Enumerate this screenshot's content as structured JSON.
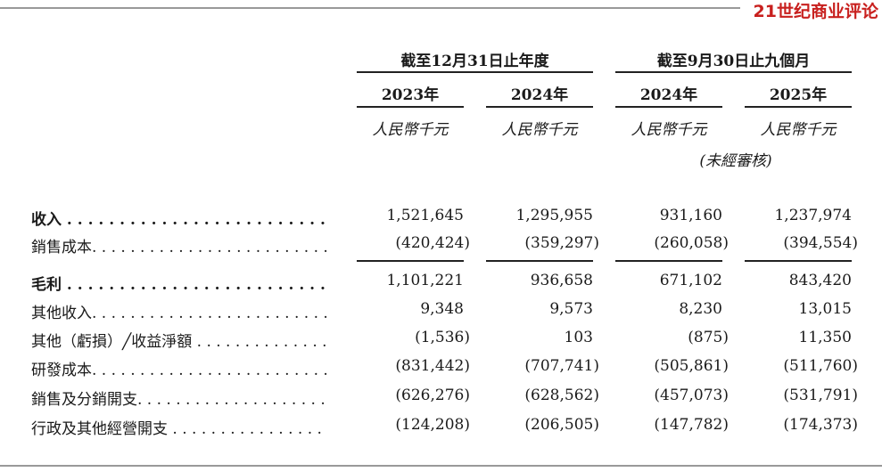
{
  "brand": "21世纪商业评论",
  "header": {
    "groups": [
      "截至12月31日止年度",
      "截至9月30日止九個月"
    ],
    "years": [
      "2023年",
      "2024年",
      "2024年",
      "2025年"
    ],
    "units": [
      "人民幣千元",
      "人民幣千元",
      "人民幣千元",
      "人民幣千元"
    ],
    "note": "(未經審核)"
  },
  "table": {
    "rows": [
      {
        "label": "收入 . . . . . . . . . . . . . . . . . . . . . . . . . . . . . . . . . . .",
        "values": [
          "1,521,645",
          "1,295,955",
          "931,160",
          "1,237,974"
        ]
      },
      {
        "label": "銷售成本. . . . . . . . . . . . . . . . . . . . . . . . . . . . . . . .",
        "values": [
          "(420,424)",
          "(359,297)",
          "(260,058)",
          "(394,554)"
        ]
      },
      {
        "label": "毛利 . . . . . . . . . . . . . . . . . . . . . . . . . . . . . . . . . . .",
        "values": [
          "1,101,221",
          "936,658",
          "671,102",
          "843,420"
        ]
      },
      {
        "label": "其他收入. . . . . . . . . . . . . . . . . . . . . . . . . . . . . . . .",
        "values": [
          "9,348",
          "9,573",
          "8,230",
          "13,015"
        ]
      },
      {
        "label": "其他（虧損）╱收益淨額 . . . . . . . . . . . . . . . . . . . .",
        "values": [
          "(1,536)",
          "103",
          "(875)",
          "11,350"
        ]
      },
      {
        "label": "研發成本. . . . . . . . . . . . . . . . . . . . . . . . . . . . . . . .",
        "values": [
          "(831,442)",
          "(707,741)",
          "(505,861)",
          "(511,760)"
        ]
      },
      {
        "label": "銷售及分銷開支. . . . . . . . . . . . . . . . . . . . . . . . . . .",
        "values": [
          "(626,276)",
          "(628,562)",
          "(457,073)",
          "(531,791)"
        ]
      },
      {
        "label": "行政及其他經營開支 . . . . . . . . . . . . . . . . . . . . . . .",
        "values": [
          "(124,208)",
          "(206,505)",
          "(147,782)",
          "(174,373)"
        ]
      }
    ]
  }
}
